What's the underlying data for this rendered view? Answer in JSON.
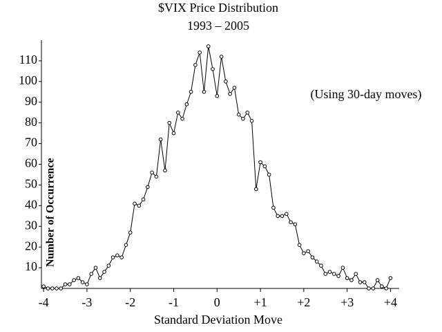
{
  "chart_data": {
    "type": "line",
    "title": "$VIX Price Distribution",
    "subtitle": "1993 – 2005",
    "annotation": "(Using 30-day moves)",
    "x_label": "Standard Deviation Move",
    "y_label": "Number of Occurrence",
    "x": [
      -4,
      -3.9,
      -3.8,
      -3.7,
      -3.6,
      -3.5,
      -3.4,
      -3.3,
      -3.2,
      -3.1,
      -3,
      -2.9,
      -2.8,
      -2.7,
      -2.6,
      -2.5,
      -2.4,
      -2.3,
      -2.2,
      -2.1,
      -2,
      -1.9,
      -1.8,
      -1.7,
      -1.6,
      -1.5,
      -1.4,
      -1.3,
      -1.2,
      -1.1,
      -1,
      -0.9,
      -0.8,
      -0.7,
      -0.6,
      -0.5,
      -0.4,
      -0.3,
      -0.2,
      -0.1,
      0,
      0.1,
      0.2,
      0.3,
      0.4,
      0.5,
      0.6,
      0.7,
      0.8,
      0.9,
      1,
      1.1,
      1.2,
      1.3,
      1.4,
      1.5,
      1.6,
      1.7,
      1.8,
      1.9,
      2,
      2.1,
      2.2,
      2.3,
      2.4,
      2.5,
      2.6,
      2.7,
      2.8,
      2.9,
      3,
      3.1,
      3.2,
      3.3,
      3.4,
      3.5,
      3.6,
      3.7,
      3.8,
      3.9,
      4
    ],
    "series": [
      {
        "name": "Occurrences",
        "color": "#000000",
        "values": [
          1,
          0,
          0,
          0,
          0,
          2,
          2,
          4,
          5,
          3,
          2,
          7,
          10,
          5,
          8,
          11,
          15,
          16,
          15,
          21,
          27,
          41,
          40,
          43,
          49,
          56,
          54,
          72,
          57,
          80,
          75,
          85,
          82,
          89,
          95,
          108,
          114,
          95,
          117,
          106,
          93,
          112,
          100,
          94,
          97,
          84,
          82,
          85,
          81,
          48,
          61,
          59,
          55,
          39,
          35,
          35,
          36,
          32,
          31,
          21,
          17,
          18,
          15,
          13,
          11,
          7,
          8,
          7,
          6,
          10,
          5,
          4,
          7,
          3,
          3,
          0,
          0,
          4,
          1,
          0,
          5
        ]
      }
    ],
    "xlim": [
      -4.05,
      4.2
    ],
    "ylim": [
      0,
      120
    ],
    "xticks": [
      -4,
      -3,
      -2,
      -1,
      0,
      {
        "value": 1,
        "label": "+1"
      },
      {
        "value": 2,
        "label": "+2"
      },
      {
        "value": 3,
        "label": "+3"
      },
      {
        "value": 4,
        "label": "+4"
      }
    ],
    "yticks": [
      10,
      20,
      30,
      40,
      50,
      60,
      70,
      80,
      90,
      100,
      110
    ],
    "grid": false,
    "markers": true
  }
}
